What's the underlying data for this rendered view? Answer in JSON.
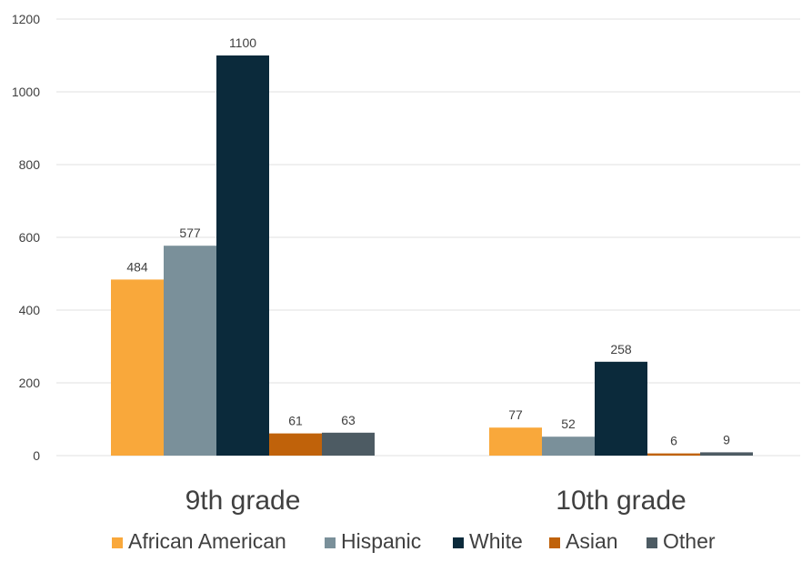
{
  "chart_data": {
    "type": "bar",
    "categories": [
      "9th grade",
      "10th grade"
    ],
    "series": [
      {
        "name": "African American",
        "values": [
          484,
          77
        ],
        "color": "#f9a83b"
      },
      {
        "name": "Hispanic",
        "values": [
          577,
          52
        ],
        "color": "#7a909a"
      },
      {
        "name": "White",
        "values": [
          1100,
          258
        ],
        "color": "#0b2a3b"
      },
      {
        "name": "Asian",
        "values": [
          61,
          6
        ],
        "color": "#c0620a"
      },
      {
        "name": "Other",
        "values": [
          63,
          9
        ],
        "color": "#4d5b63"
      }
    ],
    "data_labels": [
      [
        "484",
        "577",
        "1100",
        "61",
        "63"
      ],
      [
        "77",
        "52",
        "258",
        "6",
        "9"
      ]
    ],
    "y_ticks": [
      "0",
      "200",
      "400",
      "600",
      "800",
      "1000",
      "1200"
    ],
    "ylim": [
      0,
      1200
    ],
    "grid": true,
    "legend_position": "bottom",
    "title": "",
    "xlabel": "",
    "ylabel": ""
  }
}
